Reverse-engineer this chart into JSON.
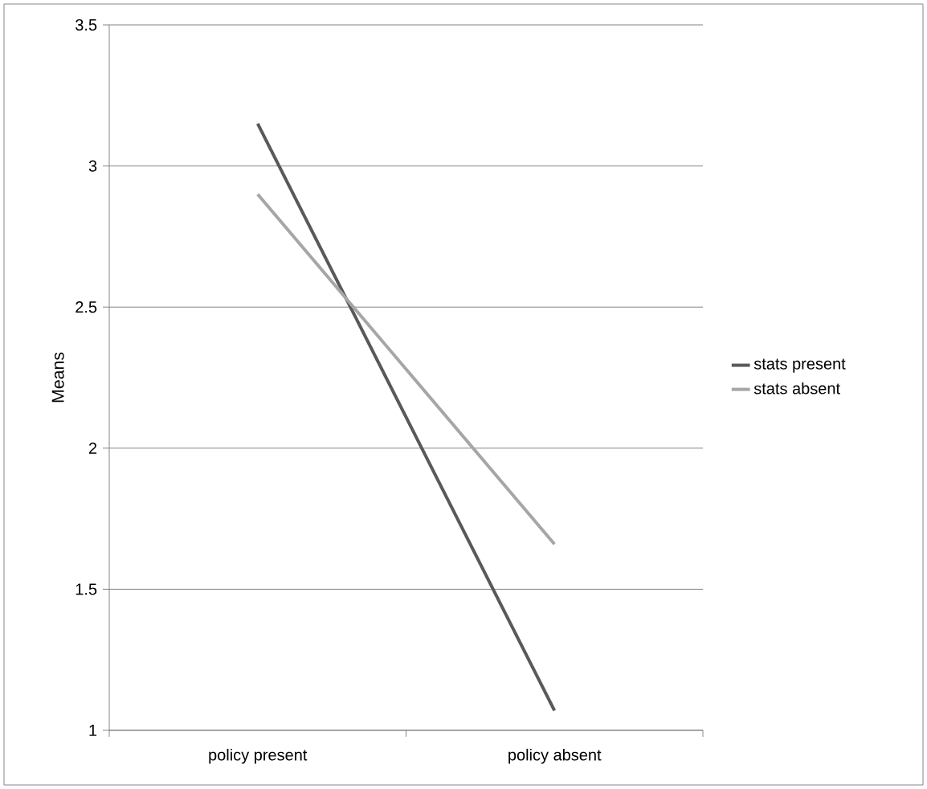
{
  "chart_data": {
    "type": "line",
    "ylabel": "Means",
    "categories": [
      "policy present",
      "policy absent"
    ],
    "series": [
      {
        "name": "stats present",
        "color": "#595959",
        "values": [
          3.15,
          1.07
        ]
      },
      {
        "name": "stats absent",
        "color": "#a6a6a6",
        "values": [
          2.9,
          1.66
        ]
      }
    ],
    "ylim": [
      1,
      3.5
    ],
    "yticks": [
      1,
      1.5,
      2,
      2.5,
      3,
      3.5
    ],
    "grid": "y",
    "legend": "right",
    "marker": "none",
    "line_style": "solid"
  }
}
